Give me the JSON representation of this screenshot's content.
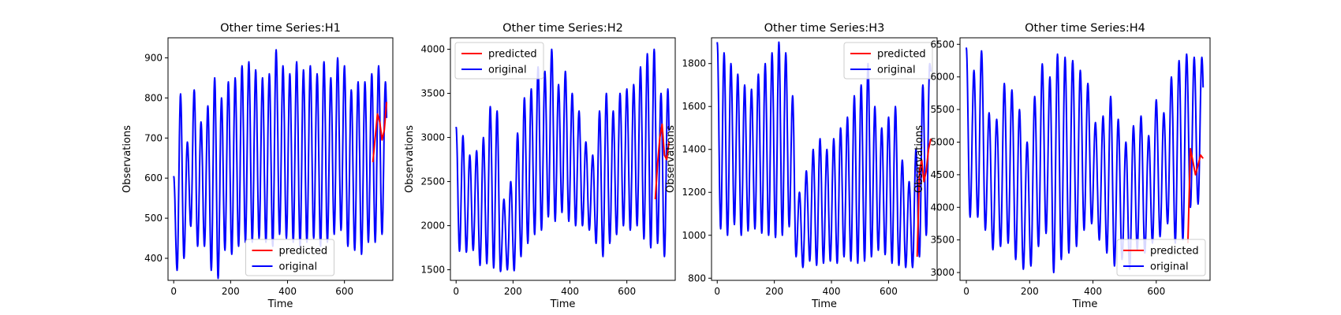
{
  "legend_labels": [
    "predicted",
    "original"
  ],
  "colors": {
    "predicted": "#ff0000",
    "original": "#0000ff"
  },
  "chart_data": [
    {
      "type": "line",
      "title": "Other time Series:H1",
      "xlabel": "Time",
      "ylabel": "Observations",
      "xlim": [
        -20,
        770
      ],
      "ylim": [
        345,
        950
      ],
      "xticks": [
        0,
        200,
        400,
        600
      ],
      "yticks": [
        400,
        500,
        600,
        700,
        800,
        900
      ],
      "legend": "bottom-center",
      "grid": false,
      "series": [
        {
          "name": "predicted",
          "color": "#ff0000",
          "segment": "forecast",
          "start": 700,
          "end": 748,
          "step": 8,
          "values": [
            640,
            700,
            760,
            740,
            695,
            720,
            790
          ]
        },
        {
          "name": "original",
          "color": "#0000ff",
          "start": 0,
          "end": 748,
          "period": 24,
          "peaks": [
            605,
            810,
            690,
            820,
            740,
            780,
            850,
            800,
            840,
            850,
            880,
            890,
            870,
            850,
            860,
            920,
            880,
            860,
            890,
            870,
            880,
            860,
            890,
            850,
            900,
            880,
            820,
            840,
            840,
            860,
            880,
            840
          ],
          "troughs": [
            370,
            400,
            480,
            430,
            430,
            370,
            350,
            420,
            410,
            430,
            440,
            440,
            450,
            440,
            430,
            460,
            450,
            440,
            430,
            440,
            450,
            430,
            440,
            460,
            470,
            430,
            420,
            410,
            440,
            440,
            460,
            480
          ]
        }
      ]
    },
    {
      "type": "line",
      "title": "Other time Series:H2",
      "xlabel": "Time",
      "ylabel": "Observations",
      "xlim": [
        -20,
        770
      ],
      "ylim": [
        1380,
        4130
      ],
      "xticks": [
        0,
        200,
        400,
        600
      ],
      "yticks": [
        1500,
        2000,
        2500,
        3000,
        3500,
        4000
      ],
      "legend": "top-left",
      "grid": false,
      "series": [
        {
          "name": "predicted",
          "color": "#ff0000",
          "segment": "forecast",
          "start": 700,
          "end": 748,
          "step": 8,
          "values": [
            2300,
            2700,
            3000,
            3150,
            2800,
            2750,
            2950
          ]
        },
        {
          "name": "original",
          "color": "#0000ff",
          "start": 0,
          "end": 748,
          "period": 24,
          "peaks": [
            3120,
            3020,
            2800,
            2850,
            3000,
            3350,
            3300,
            2300,
            2500,
            3050,
            3450,
            3550,
            3800,
            3750,
            4000,
            3600,
            3750,
            3500,
            3300,
            2950,
            2800,
            3300,
            3500,
            3300,
            3500,
            3550,
            3600,
            3800,
            3950,
            4000,
            3500,
            3550
          ],
          "troughs": [
            1710,
            1700,
            1720,
            1550,
            1570,
            1520,
            1480,
            1500,
            1490,
            1650,
            1800,
            1900,
            1950,
            2100,
            2050,
            2150,
            2050,
            2000,
            2000,
            1950,
            1800,
            1650,
            1800,
            1900,
            2000,
            1950,
            2000,
            1850,
            1750,
            1800,
            1650,
            1650
          ]
        }
      ]
    },
    {
      "type": "line",
      "title": "Other time Series:H3",
      "xlabel": "Time",
      "ylabel": "Observations",
      "xlim": [
        -20,
        770
      ],
      "ylim": [
        790,
        1920
      ],
      "xticks": [
        0,
        200,
        400,
        600
      ],
      "yticks": [
        800,
        1000,
        1200,
        1400,
        1600,
        1800
      ],
      "legend": "top-right",
      "grid": false,
      "series": [
        {
          "name": "predicted",
          "color": "#ff0000",
          "segment": "forecast",
          "start": 700,
          "end": 748,
          "step": 8,
          "values": [
            900,
            1300,
            1350,
            1250,
            1300,
            1400,
            1450
          ]
        },
        {
          "name": "original",
          "color": "#0000ff",
          "start": 0,
          "end": 748,
          "period": 24,
          "peaks": [
            1900,
            1850,
            1800,
            1750,
            1700,
            1680,
            1750,
            1800,
            1850,
            1900,
            1850,
            1650,
            1200,
            1300,
            1400,
            1450,
            1400,
            1450,
            1500,
            1550,
            1650,
            1700,
            1800,
            1600,
            1500,
            1550,
            1600,
            1350,
            1250,
            1400,
            1700,
            1800
          ],
          "troughs": [
            1030,
            1000,
            1050,
            1000,
            1020,
            1030,
            1010,
            1000,
            990,
            1000,
            1040,
            900,
            850,
            880,
            860,
            870,
            880,
            870,
            900,
            880,
            870,
            880,
            900,
            930,
            910,
            870,
            860,
            850,
            850,
            900,
            1000,
            1650
          ]
        }
      ]
    },
    {
      "type": "line",
      "title": "Other time Series:H4",
      "xlabel": "Time",
      "ylabel": "Observations",
      "xlim": [
        -20,
        770
      ],
      "ylim": [
        2880,
        6600
      ],
      "xticks": [
        0,
        200,
        400,
        600
      ],
      "yticks": [
        3000,
        3500,
        4000,
        4500,
        5000,
        5500,
        6000,
        6500
      ],
      "legend": "bottom-right",
      "grid": false,
      "series": [
        {
          "name": "predicted",
          "color": "#ff0000",
          "segment": "forecast",
          "start": 700,
          "end": 748,
          "step": 8,
          "values": [
            3450,
            4900,
            4700,
            4500,
            4650,
            4800,
            4750
          ]
        },
        {
          "name": "original",
          "color": "#0000ff",
          "start": 0,
          "end": 748,
          "period": 24,
          "peaks": [
            6450,
            6100,
            6400,
            5450,
            5350,
            5900,
            5800,
            5500,
            5000,
            5700,
            6200,
            6000,
            6350,
            6300,
            6250,
            6100,
            5900,
            5300,
            5400,
            5700,
            5350,
            5000,
            5250,
            5400,
            5100,
            5650,
            5450,
            6000,
            6250,
            6350,
            6300,
            6300
          ],
          "troughs": [
            3850,
            3850,
            3650,
            3350,
            3400,
            3450,
            3200,
            3050,
            3100,
            3400,
            3600,
            3000,
            3200,
            3300,
            3400,
            3650,
            3750,
            3500,
            3300,
            3100,
            3200,
            3050,
            3350,
            3300,
            3450,
            3550,
            3750,
            3450,
            3500,
            4000,
            4050,
            4450
          ]
        }
      ]
    }
  ]
}
